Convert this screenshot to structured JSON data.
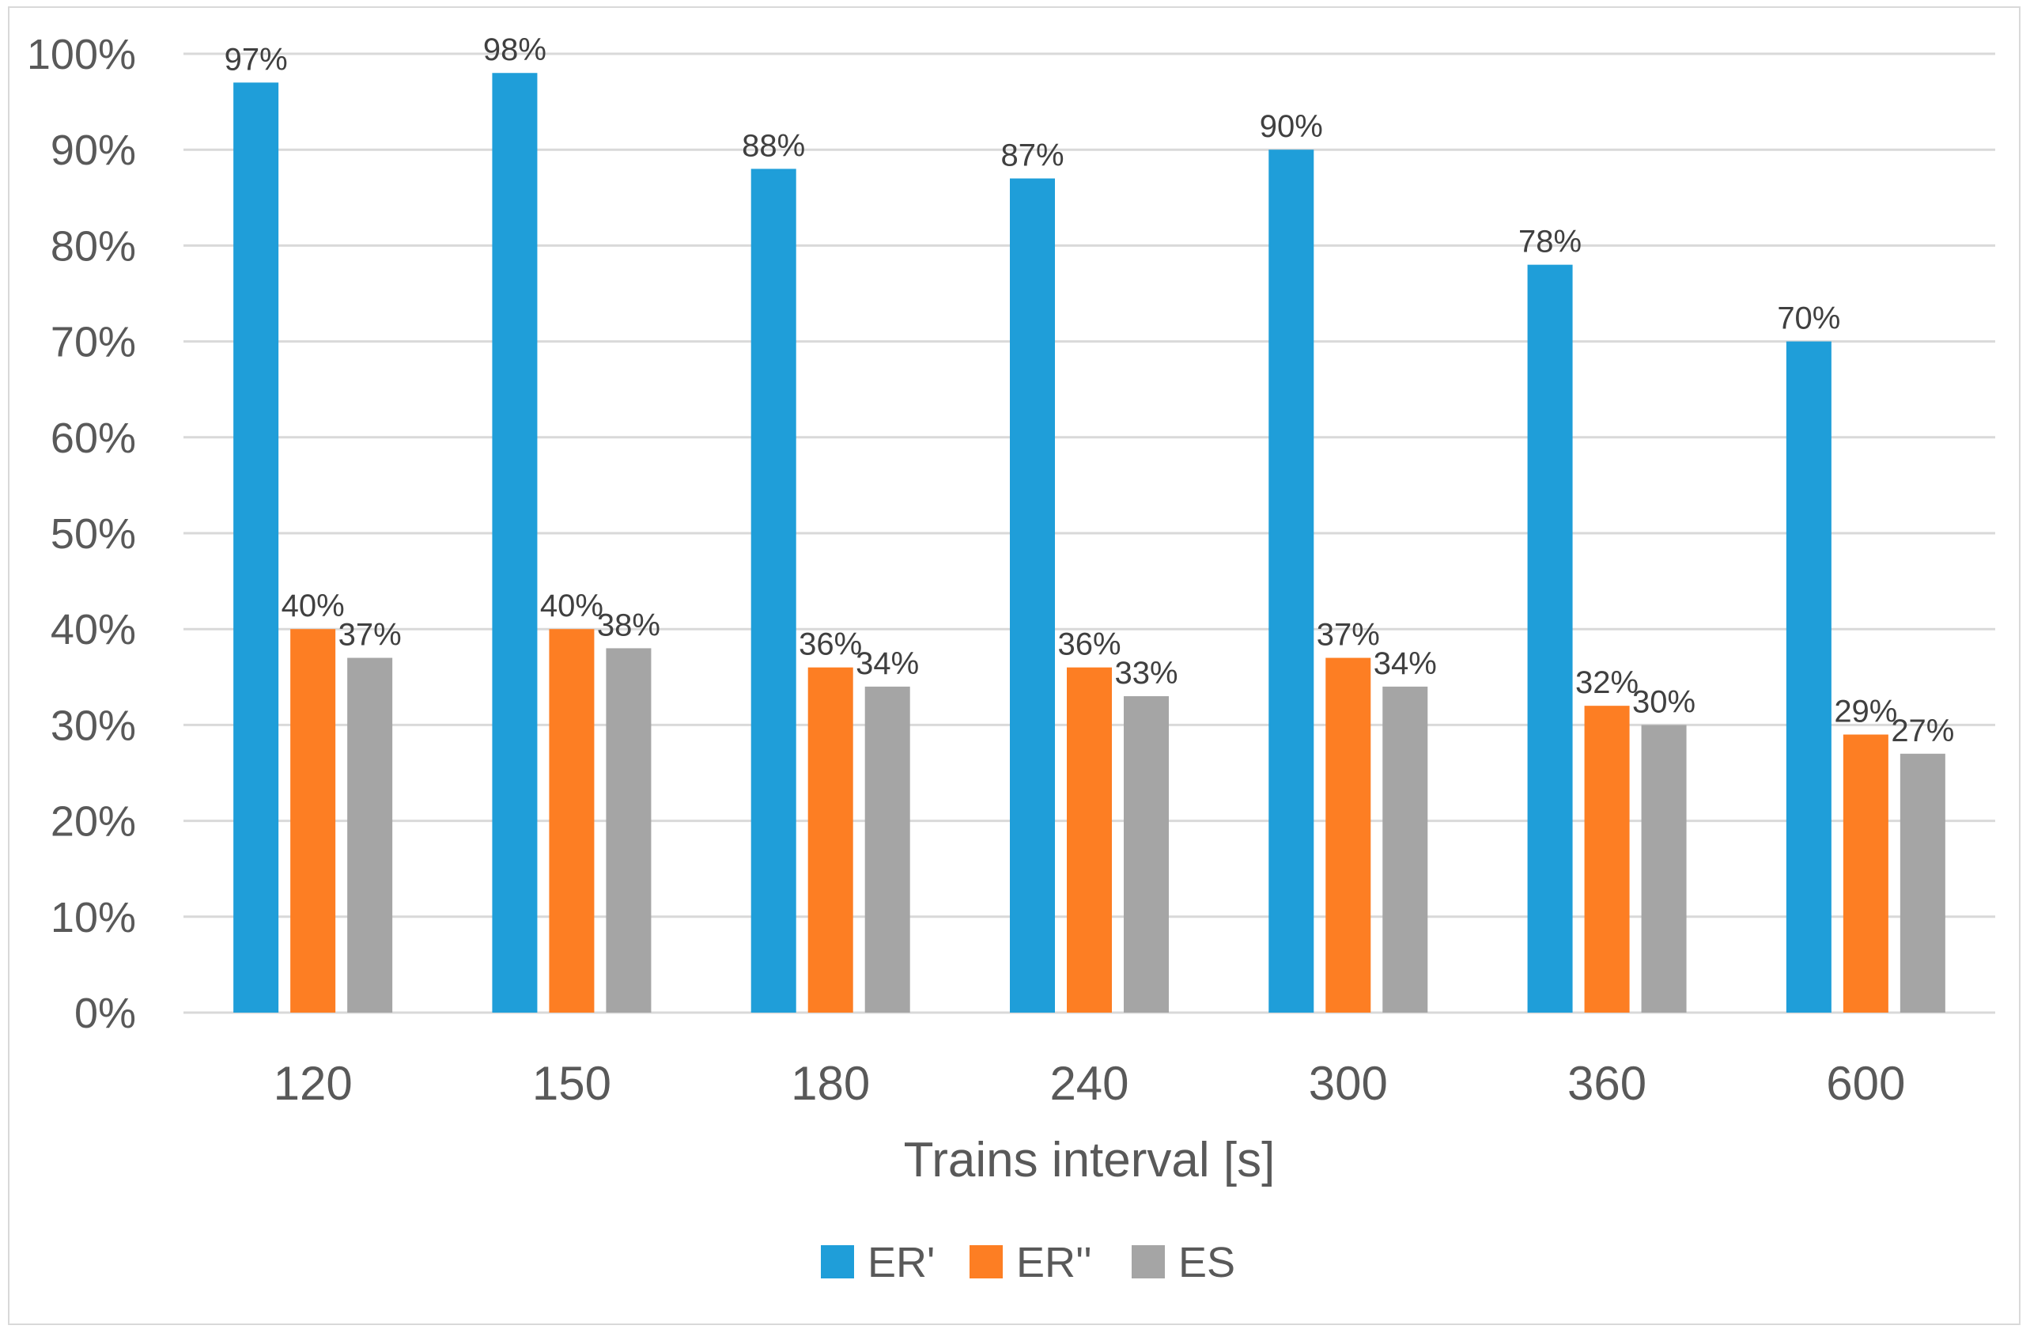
{
  "chart_data": {
    "type": "bar",
    "title": "",
    "xlabel": "Trains interval [s]",
    "ylabel": "",
    "categories": [
      "120",
      "150",
      "180",
      "240",
      "300",
      "360",
      "600"
    ],
    "series": [
      {
        "name": "ER'",
        "color": "#1f9ed9",
        "values": [
          97,
          98,
          88,
          87,
          90,
          78,
          70
        ],
        "labels": [
          "97%",
          "98%",
          "88%",
          "87%",
          "90%",
          "78%",
          "70%"
        ]
      },
      {
        "name": "ER''",
        "color": "#fd7e23",
        "values": [
          40,
          40,
          36,
          36,
          37,
          32,
          29
        ],
        "labels": [
          "40%",
          "40%",
          "36%",
          "36%",
          "37%",
          "32%",
          "29%"
        ]
      },
      {
        "name": "ES",
        "color": "#a5a5a5",
        "values": [
          37,
          38,
          34,
          33,
          34,
          30,
          27
        ],
        "labels": [
          "37%",
          "38%",
          "34%",
          "33%",
          "34%",
          "30%",
          "27%"
        ]
      }
    ],
    "ylim": [
      0,
      100
    ],
    "yticks": [
      0,
      10,
      20,
      30,
      40,
      50,
      60,
      70,
      80,
      90,
      100
    ],
    "ytick_labels": [
      "0%",
      "10%",
      "20%",
      "30%",
      "40%",
      "50%",
      "60%",
      "70%",
      "80%",
      "90%",
      "100%"
    ],
    "grid": true,
    "legend_position": "bottom"
  }
}
